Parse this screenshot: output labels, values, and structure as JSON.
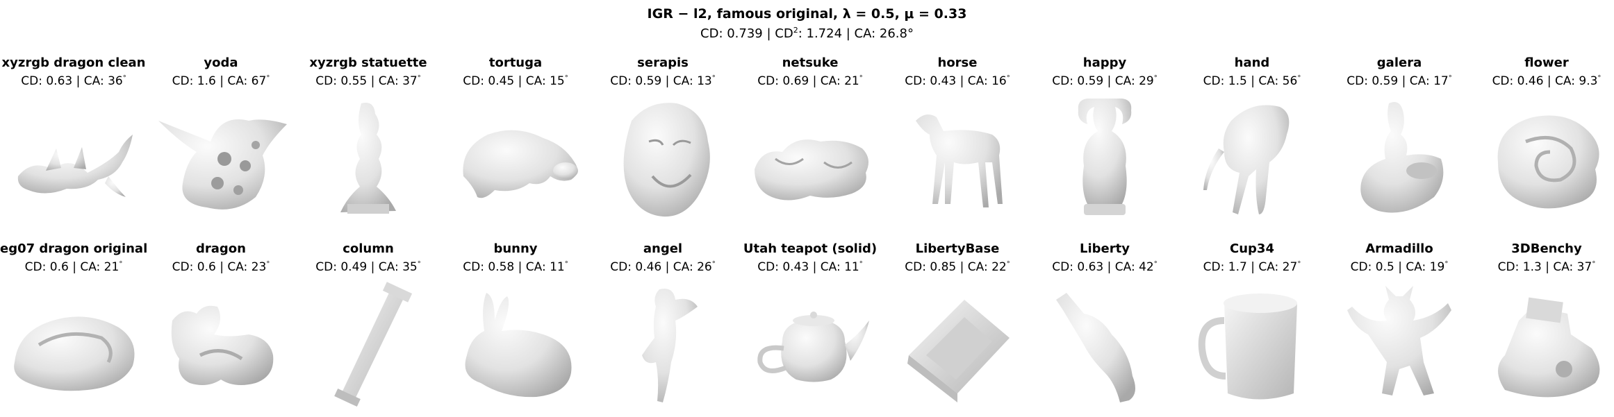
{
  "header": {
    "title_method": "IGR − l2,",
    "title_variant": "famous original,",
    "title_lambda": "λ = 0.5,",
    "title_mu": "μ = 0.33",
    "stats_cd_prefix": "CD: 0.739 | CD",
    "stats_sup": "2",
    "stats_rest": ": 1.724 | CA: 26.8",
    "stats_deg": "°"
  },
  "panels": [
    {
      "name": "xyzrgb dragon clean",
      "stats": "CD: 0.63 | CA: 36",
      "shape": "dragon-icon"
    },
    {
      "name": "yoda",
      "stats": "CD: 1.6 | CA: 67",
      "shape": "yoda-icon"
    },
    {
      "name": "xyzrgb statuette",
      "stats": "CD: 0.55 | CA: 37",
      "shape": "statuette-icon"
    },
    {
      "name": "tortuga",
      "stats": "CD: 0.45 | CA: 15",
      "shape": "turtle-icon"
    },
    {
      "name": "serapis",
      "stats": "CD: 0.59 | CA: 13",
      "shape": "bust-icon"
    },
    {
      "name": "netsuke",
      "stats": "CD: 0.69 | CA: 21",
      "shape": "netsuke-icon"
    },
    {
      "name": "horse",
      "stats": "CD: 0.43 | CA: 16",
      "shape": "horse-icon"
    },
    {
      "name": "happy",
      "stats": "CD: 0.59 | CA: 29",
      "shape": "buddha-icon"
    },
    {
      "name": "hand",
      "stats": "CD: 1.5 | CA: 56",
      "shape": "hand-icon"
    },
    {
      "name": "galera",
      "stats": "CD: 0.59 | CA: 17",
      "shape": "galera-icon"
    },
    {
      "name": "flower",
      "stats": "CD: 0.46 | CA: 9.3",
      "shape": "flower-icon"
    },
    {
      "name": "eg07 dragon original",
      "stats": "CD: 0.6 | CA: 21",
      "shape": "shell-dragon-icon"
    },
    {
      "name": "dragon",
      "stats": "CD: 0.6 | CA: 23",
      "shape": "dragon-coil-icon"
    },
    {
      "name": "column",
      "stats": "CD: 0.49 | CA: 35",
      "shape": "column-icon"
    },
    {
      "name": "bunny",
      "stats": "CD: 0.58 | CA: 11",
      "shape": "bunny-icon"
    },
    {
      "name": "angel",
      "stats": "CD: 0.46 | CA: 26",
      "shape": "angel-icon"
    },
    {
      "name": "Utah teapot (solid)",
      "stats": "CD: 0.43 | CA: 11",
      "shape": "teapot-icon"
    },
    {
      "name": "LibertyBase",
      "stats": "CD: 0.85 | CA: 22",
      "shape": "pedestal-icon"
    },
    {
      "name": "Liberty",
      "stats": "CD: 0.63 | CA: 42",
      "shape": "liberty-icon"
    },
    {
      "name": "Cup34",
      "stats": "CD: 1.7 | CA: 27",
      "shape": "cup-icon"
    },
    {
      "name": "Armadillo",
      "stats": "CD: 0.5 | CA: 19",
      "shape": "armadillo-icon"
    },
    {
      "name": "3DBenchy",
      "stats": "CD: 1.3 | CA: 37",
      "shape": "benchy-icon"
    }
  ],
  "degree_symbol": "°"
}
